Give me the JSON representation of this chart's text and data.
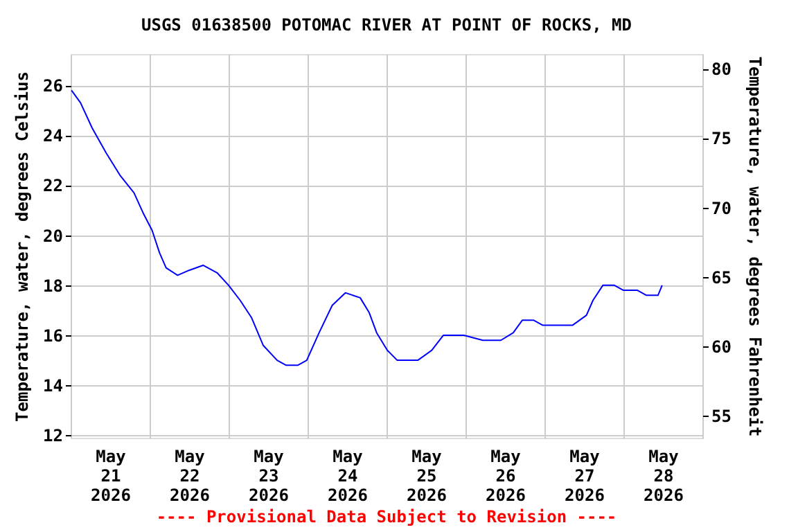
{
  "chart_data": {
    "type": "line",
    "title": "USGS 01638500 POTOMAC RIVER AT POINT OF ROCKS, MD",
    "ylabel": "Temperature, water, degrees Celsius",
    "y2label": "Temperature, water, degrees Fahrenheit",
    "annotations": [
      "---- Provisional Data Subject to Revision ----"
    ],
    "x": [
      "2026-05-21T00:15",
      "2026-05-21T03:00",
      "2026-05-21T06:30",
      "2026-05-21T10:45",
      "2026-05-21T15:00",
      "2026-05-21T19:15",
      "2026-05-21T22:00",
      "2026-05-22T00:45",
      "2026-05-22T03:00",
      "2026-05-22T05:00",
      "2026-05-22T08:30",
      "2026-05-22T12:00",
      "2026-05-22T16:15",
      "2026-05-22T20:30",
      "2026-05-23T00:00",
      "2026-05-23T03:30",
      "2026-05-23T07:00",
      "2026-05-23T10:30",
      "2026-05-23T14:45",
      "2026-05-23T17:30",
      "2026-05-23T21:00",
      "2026-05-23T23:45",
      "2026-05-24T03:30",
      "2026-05-24T07:30",
      "2026-05-24T11:30",
      "2026-05-24T16:00",
      "2026-05-24T18:45",
      "2026-05-24T21:00",
      "2026-05-25T00:15",
      "2026-05-25T03:15",
      "2026-05-25T09:30",
      "2026-05-25T13:45",
      "2026-05-25T17:15",
      "2026-05-25T23:30",
      "2026-05-26T05:15",
      "2026-05-26T10:45",
      "2026-05-26T14:30",
      "2026-05-26T17:15",
      "2026-05-26T20:45",
      "2026-05-26T23:30",
      "2026-05-27T08:30",
      "2026-05-27T12:45",
      "2026-05-27T14:45",
      "2026-05-27T17:45",
      "2026-05-27T21:15",
      "2026-05-28T00:00",
      "2026-05-28T04:15",
      "2026-05-28T07:00",
      "2026-05-28T10:30",
      "2026-05-28T11:45"
    ],
    "series": [
      {
        "color": "#0000ff",
        "values": [
          25.8,
          25.3,
          24.3,
          23.3,
          22.4,
          21.7,
          20.9,
          20.2,
          19.3,
          18.7,
          18.4,
          18.6,
          18.8,
          18.5,
          18.0,
          17.4,
          16.7,
          15.6,
          15.0,
          14.8,
          14.8,
          15.0,
          16.1,
          17.2,
          17.7,
          17.5,
          16.9,
          16.1,
          15.4,
          15.0,
          15.0,
          15.4,
          16.0,
          16.0,
          15.8,
          15.8,
          16.1,
          16.6,
          16.6,
          16.4,
          16.4,
          16.8,
          17.4,
          18.0,
          18.0,
          17.8,
          17.8,
          17.6,
          17.6,
          18.0
        ]
      }
    ],
    "xlim": [
      "2026-05-21T00:00",
      "2026-05-29T00:00"
    ],
    "xticks": [
      {
        "value": "2026-05-21T00:00",
        "label": null
      },
      {
        "value": "2026-05-21T12:00",
        "label": "May 21 2026"
      },
      {
        "value": "2026-05-22T00:00",
        "label": null
      },
      {
        "value": "2026-05-22T12:00",
        "label": "May 22 2026"
      },
      {
        "value": "2026-05-23T00:00",
        "label": null
      },
      {
        "value": "2026-05-23T12:00",
        "label": "May 23 2026"
      },
      {
        "value": "2026-05-24T00:00",
        "label": null
      },
      {
        "value": "2026-05-24T12:00",
        "label": "May 24 2026"
      },
      {
        "value": "2026-05-25T00:00",
        "label": null
      },
      {
        "value": "2026-05-25T12:00",
        "label": "May 25 2026"
      },
      {
        "value": "2026-05-26T00:00",
        "label": null
      },
      {
        "value": "2026-05-26T12:00",
        "label": "May 26 2026"
      },
      {
        "value": "2026-05-27T00:00",
        "label": null
      },
      {
        "value": "2026-05-27T12:00",
        "label": "May 27 2026"
      },
      {
        "value": "2026-05-28T00:00",
        "label": null
      },
      {
        "value": "2026-05-28T12:00",
        "label": "May 28 2026"
      },
      {
        "value": "2026-05-29T00:00",
        "label": null
      }
    ],
    "ylim": [
      11.9,
      27.25
    ],
    "yticks": [
      12,
      14,
      16,
      18,
      20,
      22,
      24,
      26
    ],
    "y2lim": [
      53.42,
      81.05
    ],
    "y2ticks": [
      55,
      60,
      65,
      70,
      75,
      80
    ],
    "grid": true,
    "line_style": "solid",
    "marker": "none"
  }
}
